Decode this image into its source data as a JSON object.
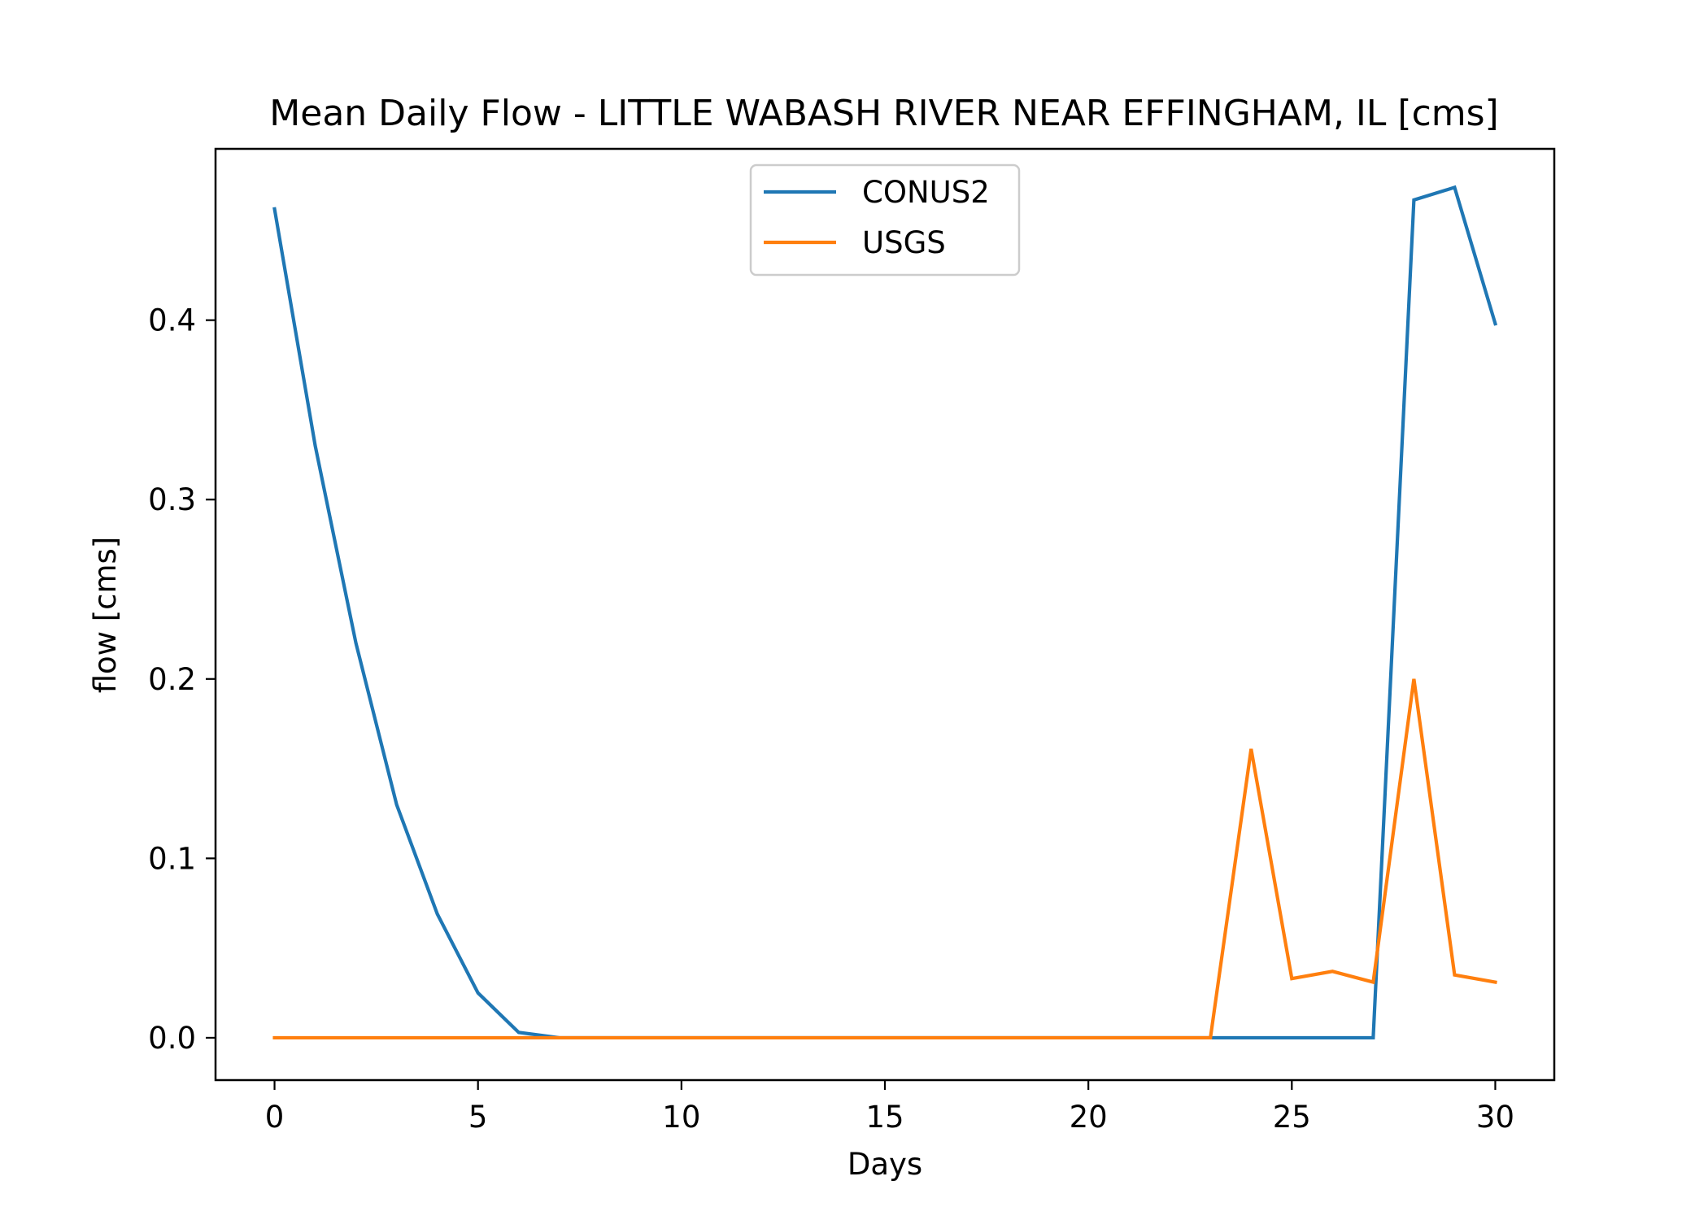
{
  "chart_data": {
    "type": "line",
    "title": "Mean Daily Flow - LITTLE WABASH RIVER NEAR EFFINGHAM, IL [cms]",
    "xlabel": "Days",
    "ylabel": "flow [cms]",
    "xlim": [
      -1.45,
      31.45
    ],
    "ylim": [
      -0.0236,
      0.4955
    ],
    "xticks": [
      0,
      5,
      10,
      15,
      20,
      25,
      30
    ],
    "yticks": [
      0.0,
      0.1,
      0.2,
      0.3,
      0.4
    ],
    "ytick_labels": [
      "0.0",
      "0.1",
      "0.2",
      "0.3",
      "0.4"
    ],
    "grid": false,
    "legend_position": "upper center",
    "x": [
      0,
      1,
      2,
      3,
      4,
      5,
      6,
      7,
      8,
      9,
      10,
      11,
      12,
      13,
      14,
      15,
      16,
      17,
      18,
      19,
      20,
      21,
      22,
      23,
      24,
      25,
      26,
      27,
      28,
      29,
      30
    ],
    "series": [
      {
        "name": "CONUS2",
        "color": "#1f77b4",
        "values": [
          0.462,
          0.33,
          0.22,
          0.13,
          0.069,
          0.025,
          0.003,
          0.0,
          0.0,
          0.0,
          0.0,
          0.0,
          0.0,
          0.0,
          0.0,
          0.0,
          0.0,
          0.0,
          0.0,
          0.0,
          0.0,
          0.0,
          0.0,
          0.0,
          0.0,
          0.0,
          0.0,
          0.0,
          0.467,
          0.474,
          0.398
        ]
      },
      {
        "name": "USGS",
        "color": "#ff7f0e",
        "values": [
          0.0,
          0.0,
          0.0,
          0.0,
          0.0,
          0.0,
          0.0,
          0.0,
          0.0,
          0.0,
          0.0,
          0.0,
          0.0,
          0.0,
          0.0,
          0.0,
          0.0,
          0.0,
          0.0,
          0.0,
          0.0,
          0.0,
          0.0,
          0.0,
          0.161,
          0.033,
          0.037,
          0.031,
          0.2,
          0.035,
          0.031
        ]
      }
    ]
  }
}
